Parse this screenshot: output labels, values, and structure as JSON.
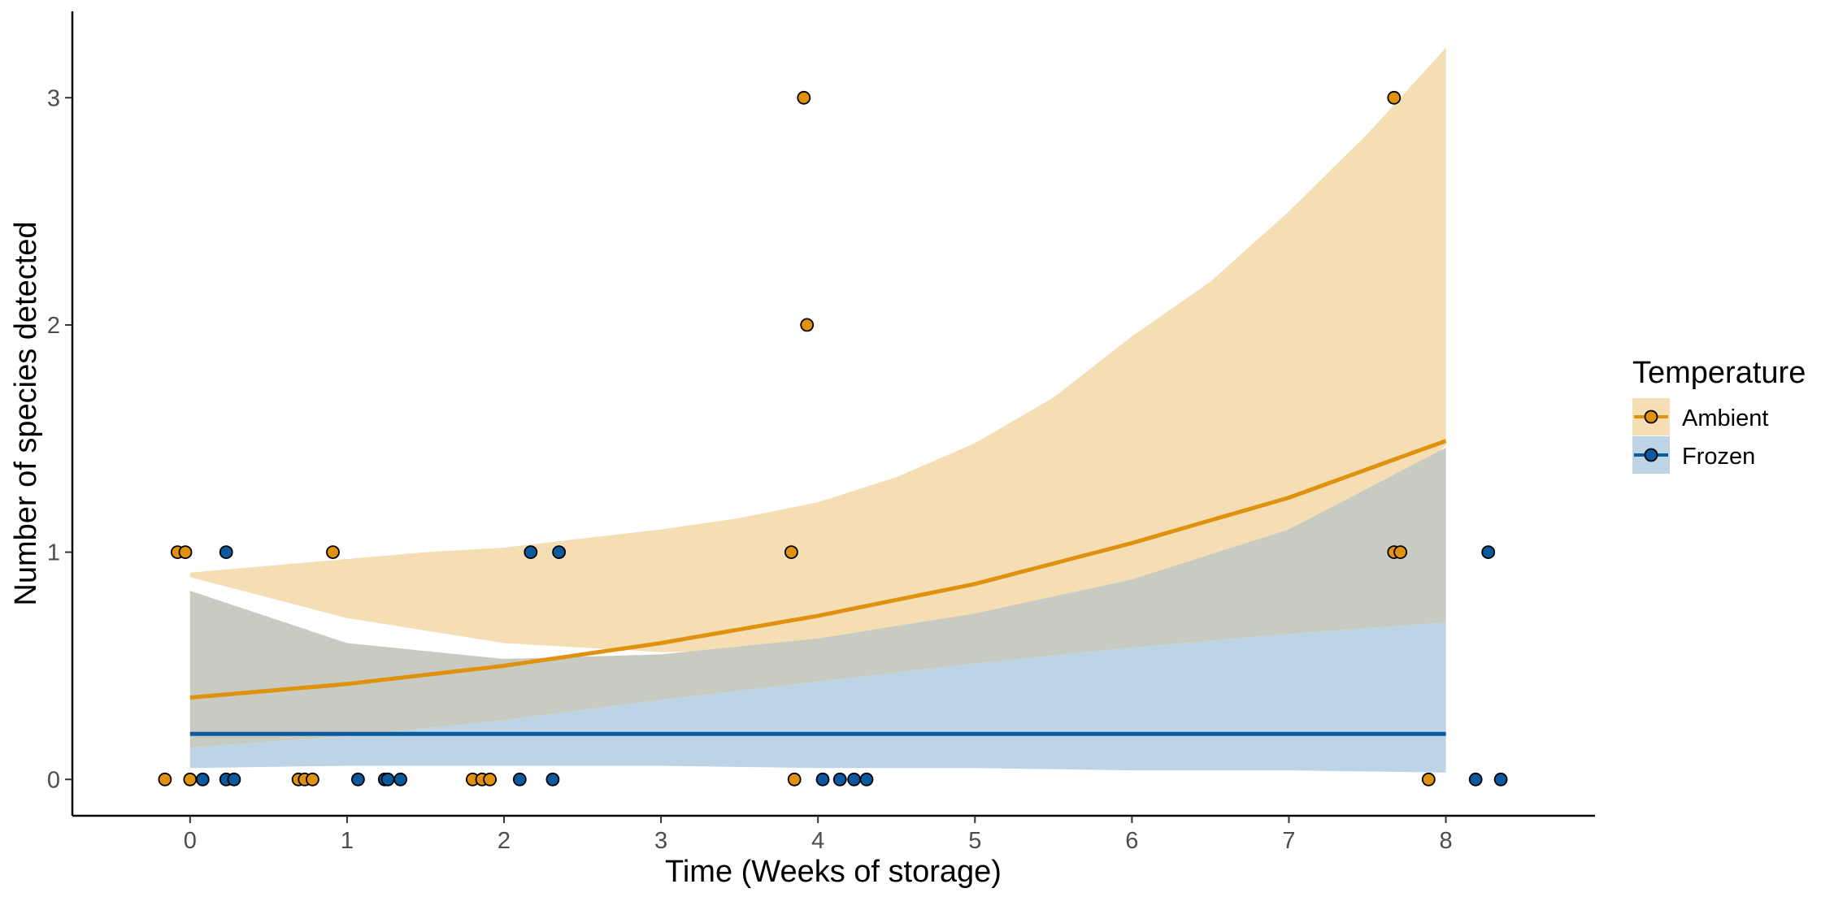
{
  "chart_data": {
    "type": "scatter",
    "xlabel": "Time (Weeks of storage)",
    "ylabel": "Number of species detected",
    "xlim": [
      -0.75,
      8.95
    ],
    "ylim": [
      -0.16,
      3.38
    ],
    "x_ticks": [
      0,
      1,
      2,
      3,
      4,
      5,
      6,
      7,
      8
    ],
    "y_ticks": [
      0,
      1,
      2,
      3
    ],
    "grid": false,
    "legend": {
      "title": "Temperature",
      "position": "right",
      "entries": [
        "Ambient",
        "Frozen"
      ]
    },
    "colors": {
      "Ambient": "#e0920f",
      "Frozen": "#0b5aa0",
      "Ambient_band": "#f5ddb4",
      "Frozen_band": "#bcd4e6"
    },
    "series": [
      {
        "name": "Ambient",
        "points": [
          [
            -0.16,
            0
          ],
          [
            -0.08,
            1
          ],
          [
            -0.03,
            1
          ],
          [
            0.0,
            0
          ],
          [
            0.69,
            0
          ],
          [
            0.73,
            0
          ],
          [
            0.78,
            0
          ],
          [
            0.91,
            1
          ],
          [
            1.8,
            0
          ],
          [
            1.86,
            0
          ],
          [
            1.91,
            0
          ],
          [
            3.83,
            1
          ],
          [
            3.85,
            0
          ],
          [
            3.91,
            3
          ],
          [
            3.93,
            2
          ],
          [
            7.67,
            3
          ],
          [
            7.67,
            1
          ],
          [
            7.71,
            1
          ],
          [
            7.89,
            0
          ]
        ],
        "fit": {
          "x": [
            0,
            1,
            2,
            3,
            4,
            5,
            6,
            7,
            8
          ],
          "y": [
            0.36,
            0.42,
            0.5,
            0.6,
            0.72,
            0.86,
            1.04,
            1.24,
            1.49
          ]
        },
        "ci_low": {
          "x": [
            0,
            1,
            2,
            3,
            4,
            5,
            6,
            7,
            8
          ],
          "y": [
            0.89,
            0.71,
            0.6,
            0.56,
            0.57,
            0.62,
            0.71,
            0.86,
            1.47
          ]
        },
        "ci_high": {
          "x": [
            0,
            0.5,
            1,
            1.5,
            2,
            2.5,
            3,
            3.5,
            4,
            4.5,
            5,
            5.5,
            6,
            6.5,
            7,
            7.5,
            8
          ],
          "y": [
            0.91,
            0.94,
            0.97,
            1.0,
            1.02,
            1.06,
            1.1,
            1.15,
            1.22,
            1.33,
            1.48,
            1.68,
            1.95,
            2.19,
            2.5,
            2.84,
            3.22
          ]
        }
      },
      {
        "name": "Frozen",
        "points": [
          [
            0.08,
            0
          ],
          [
            0.23,
            1
          ],
          [
            0.23,
            0
          ],
          [
            0.28,
            0
          ],
          [
            1.07,
            0
          ],
          [
            1.24,
            0
          ],
          [
            1.26,
            0
          ],
          [
            1.34,
            0
          ],
          [
            2.1,
            0
          ],
          [
            2.17,
            1
          ],
          [
            2.31,
            0
          ],
          [
            2.35,
            1
          ],
          [
            4.03,
            0
          ],
          [
            4.14,
            0
          ],
          [
            4.23,
            0
          ],
          [
            4.31,
            0
          ],
          [
            8.19,
            0
          ],
          [
            8.27,
            1
          ],
          [
            8.35,
            0
          ]
        ],
        "fit": {
          "x": [
            0,
            8
          ],
          "y": [
            0.2,
            0.2
          ]
        },
        "ci_low": {
          "x": [
            0,
            1,
            2,
            3,
            4,
            5,
            6,
            7,
            8
          ],
          "y": [
            0.05,
            0.06,
            0.06,
            0.06,
            0.05,
            0.05,
            0.04,
            0.04,
            0.03
          ]
        },
        "ci_high": {
          "x": [
            0,
            1,
            2,
            3,
            4,
            5,
            6,
            7,
            8
          ],
          "y": [
            0.14,
            0.19,
            0.26,
            0.35,
            0.43,
            0.51,
            0.58,
            0.64,
            0.69
          ]
        },
        "ci_top": {
          "x": [
            0,
            1,
            2,
            3,
            4,
            5,
            6,
            7,
            8
          ],
          "y": [
            0.83,
            0.6,
            0.53,
            0.55,
            0.62,
            0.73,
            0.88,
            1.1,
            1.46
          ]
        }
      }
    ]
  }
}
